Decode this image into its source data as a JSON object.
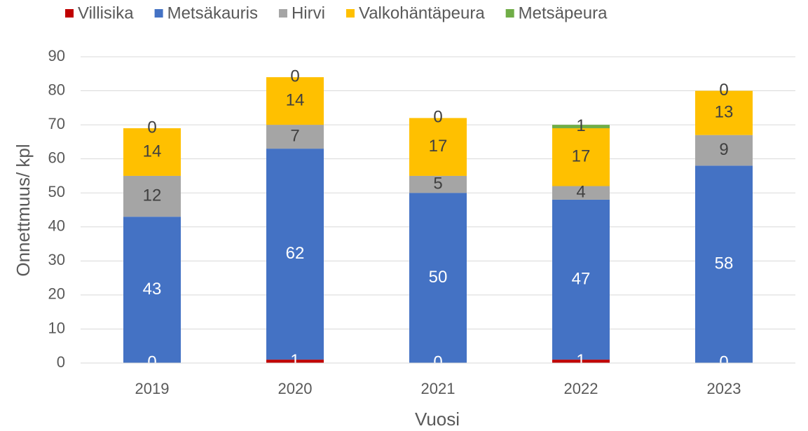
{
  "chart_data": {
    "type": "stacked_bar",
    "x_label": "Vuosi",
    "y_label": "Onnettmuus/ kpl",
    "categories": [
      "2019",
      "2020",
      "2021",
      "2022",
      "2023"
    ],
    "series": [
      {
        "name": "Villisika",
        "color": "#c00000",
        "values": [
          0,
          1,
          0,
          1,
          0
        ]
      },
      {
        "name": "Metsäkauris",
        "color": "#4472c4",
        "values": [
          43,
          62,
          50,
          47,
          58
        ]
      },
      {
        "name": "Hirvi",
        "color": "#a5a5a5",
        "values": [
          12,
          7,
          5,
          4,
          9
        ]
      },
      {
        "name": "Valkohäntäpeura",
        "color": "#ffc000",
        "values": [
          14,
          14,
          17,
          17,
          13
        ]
      },
      {
        "name": "Metsäpeura",
        "color": "#70ad47",
        "values": [
          0,
          0,
          0,
          1,
          0
        ]
      }
    ],
    "ylim": [
      0,
      90
    ],
    "yticks": [
      0,
      10,
      20,
      30,
      40,
      50,
      60,
      70,
      80,
      90
    ],
    "grid": true,
    "legend": "top"
  }
}
